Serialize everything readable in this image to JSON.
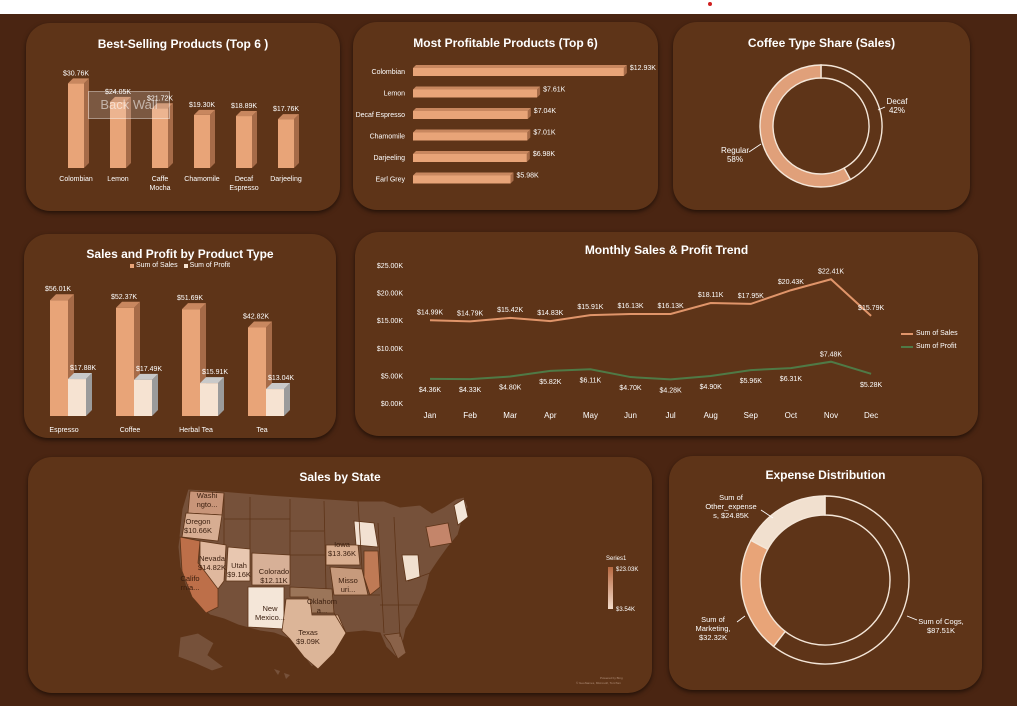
{
  "colors": {
    "background": "#4a2512",
    "panel": "#5e3418",
    "bar_light": "#e8a478",
    "bar_cream": "#f6e3d2",
    "sales_line": "#e0956a",
    "profit_line": "#4f7a46",
    "donut_regular": "#e0a07a",
    "donut_cogs": "#5e3418"
  },
  "panels": {
    "best_selling": {
      "title": "Best-Selling Products (Top 6 )",
      "back_wall": "Back Wall"
    },
    "most_profitable": {
      "title": "Most Profitable Products (Top 6)"
    },
    "coffee_share": {
      "title": "Coffee Type Share (Sales)"
    },
    "product_type": {
      "title": "Sales and  Profit by Product Type",
      "legend_sales": "Sum of Sales",
      "legend_profit": "Sum of Profit"
    },
    "monthly": {
      "title": "Monthly Sales & Profit Trend",
      "legend_sales": "Sum of Sales",
      "legend_profit": "Sum of Profit"
    },
    "state": {
      "title": "Sales by State",
      "legend_series": "Series1",
      "legend_max": "$23.03K",
      "legend_min": "$3.54K",
      "credit_line1": "Powered by Bing",
      "credit_line2": "© GeoNames, Microsoft, TomTom"
    },
    "expense": {
      "title": "Expense Distribution"
    }
  },
  "chart_data": [
    {
      "id": "best_selling",
      "type": "bar",
      "categories": [
        "Colombian",
        "Lemon",
        "Caffe Mocha",
        "Chamomile",
        "Decaf Espresso",
        "Darjeeling"
      ],
      "category_lines": [
        [
          "Colombian"
        ],
        [
          "Lemon"
        ],
        [
          "Caffe",
          "Mocha"
        ],
        [
          "Chamomile"
        ],
        [
          "Decaf",
          "Espresso"
        ],
        [
          "Darjeeling"
        ]
      ],
      "values": [
        30.76,
        24.05,
        21.72,
        19.3,
        18.89,
        17.76
      ],
      "labels": [
        "$30.76K",
        "$24.05K",
        "$21.72K",
        "$19.30K",
        "$18.89K",
        "$17.76K"
      ],
      "ylim": [
        0,
        32
      ]
    },
    {
      "id": "most_profitable",
      "type": "bar",
      "orientation": "horizontal",
      "categories": [
        "Colombian",
        "Lemon",
        "Decaf Espresso",
        "Chamomile",
        "Darjeeling",
        "Earl Grey"
      ],
      "values": [
        12.93,
        7.61,
        7.04,
        7.01,
        6.98,
        5.98
      ],
      "labels": [
        "$12.93K",
        "$7.61K",
        "$7.04K",
        "$7.01K",
        "$6.98K",
        "$5.98K"
      ],
      "xlim": [
        0,
        13
      ]
    },
    {
      "id": "coffee_share",
      "type": "pie",
      "donut": true,
      "slices": [
        {
          "name": "Decaf",
          "value": 42,
          "label": "42%"
        },
        {
          "name": "Regular",
          "value": 58,
          "label": "58%"
        }
      ]
    },
    {
      "id": "product_type",
      "type": "bar",
      "categories": [
        "Espresso",
        "Coffee",
        "Herbal Tea",
        "Tea"
      ],
      "series": [
        {
          "name": "Sum of Sales",
          "values": [
            56.01,
            52.37,
            51.69,
            42.82
          ],
          "labels": [
            "$56.01K",
            "$52.37K",
            "$51.69K",
            "$42.82K"
          ]
        },
        {
          "name": "Sum of Profit",
          "values": [
            17.88,
            17.49,
            15.91,
            13.04
          ],
          "labels": [
            "$17.88K",
            "$17.49K",
            "$15.91K",
            "$13.04K"
          ]
        }
      ],
      "ylim": [
        0,
        60
      ],
      "legend": "top-center"
    },
    {
      "id": "monthly",
      "type": "line",
      "categories": [
        "Jan",
        "Feb",
        "Mar",
        "Apr",
        "May",
        "Jun",
        "Jul",
        "Aug",
        "Sep",
        "Oct",
        "Nov",
        "Dec"
      ],
      "series": [
        {
          "name": "Sum of Sales",
          "values": [
            14.99,
            14.79,
            15.42,
            14.83,
            15.91,
            16.13,
            16.13,
            18.11,
            17.95,
            20.43,
            22.41,
            15.79
          ],
          "labels": [
            "$14.99K",
            "$14.79K",
            "$15.42K",
            "$14.83K",
            "$15.91K",
            "$16.13K",
            "$16.13K",
            "$18.11K",
            "$17.95K",
            "$20.43K",
            "$22.41K",
            "$15.79K"
          ]
        },
        {
          "name": "Sum of Profit",
          "values": [
            4.36,
            4.33,
            4.8,
            5.82,
            6.11,
            4.7,
            4.28,
            4.9,
            5.96,
            6.31,
            7.48,
            5.28
          ],
          "labels": [
            "$4.36K",
            "$4.33K",
            "$4.80K",
            "$5.82K",
            "$6.11K",
            "$4.70K",
            "$4.28K",
            "$4.90K",
            "$5.96K",
            "$6.31K",
            "$7.48K",
            "$5.28K"
          ]
        }
      ],
      "yticks": [
        "$0.00K",
        "$5.00K",
        "$10.00K",
        "$15.00K",
        "$20.00K",
        "$25.00K"
      ],
      "ylim": [
        0,
        25
      ],
      "legend": "right"
    },
    {
      "id": "sales_by_state",
      "type": "heatmap",
      "kind": "choropleth",
      "labels": [
        {
          "text": [
            "Washi",
            "ngto..."
          ]
        },
        {
          "text": [
            "Oregon",
            "$10.66K"
          ]
        },
        {
          "text": [
            "Nevada",
            "$14.82K"
          ]
        },
        {
          "text": [
            "Utah",
            "$9.16K"
          ]
        },
        {
          "text": [
            "Colorado",
            "$12.11K"
          ]
        },
        {
          "text": [
            "Iowa",
            "$13.36K"
          ]
        },
        {
          "text": [
            "Misso",
            "uri..."
          ]
        },
        {
          "text": [
            "Califo",
            "rnia..."
          ]
        },
        {
          "text": [
            "New",
            "Mexico..."
          ]
        },
        {
          "text": [
            "Oklahom",
            "a..."
          ]
        },
        {
          "text": [
            "Texas",
            "$9.09K"
          ]
        }
      ],
      "scale": {
        "min": "$3.54K",
        "max": "$23.03K"
      }
    },
    {
      "id": "expense",
      "type": "pie",
      "donut": true,
      "slices": [
        {
          "name": "Sum of Cogs",
          "value": 87.51,
          "label": [
            "Sum of Cogs,",
            "$87.51K"
          ]
        },
        {
          "name": "Sum of Marketing",
          "value": 32.32,
          "label": [
            "Sum of",
            "Marketing,",
            "$32.32K"
          ]
        },
        {
          "name": "Sum of Other_expenses",
          "value": 24.85,
          "label": [
            "Sum of",
            "Other_expense",
            "s, $24.85K"
          ]
        }
      ]
    }
  ]
}
